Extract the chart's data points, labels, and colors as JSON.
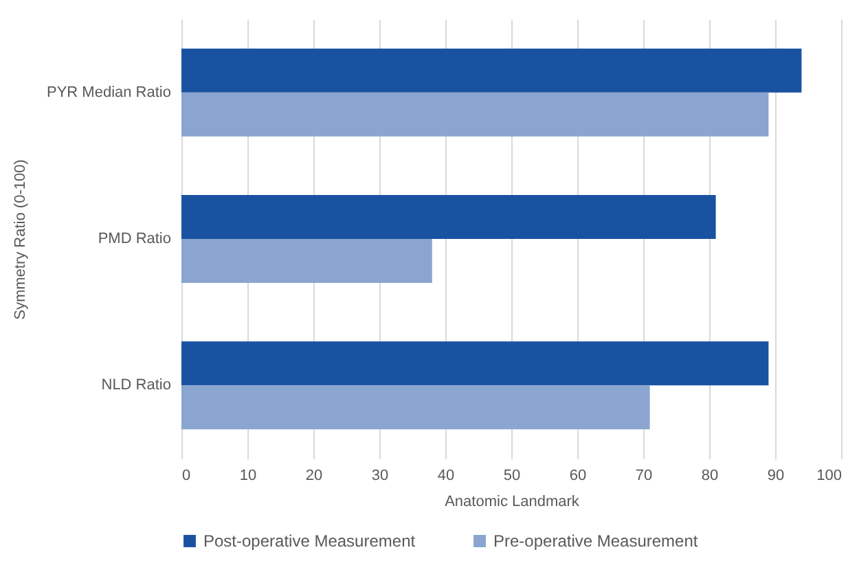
{
  "chart_data": {
    "type": "bar",
    "orientation": "horizontal",
    "xlabel": "Anatomic Landmark",
    "ylabel": "Symmetry Ratio (0-100)",
    "categories": [
      "PYR Median Ratio",
      "PMD Ratio",
      "NLD Ratio"
    ],
    "series": [
      {
        "name": "Post-operative Measurement",
        "color": "#1a52a2",
        "values": [
          94,
          81,
          89
        ]
      },
      {
        "name": "Pre-operative Measurement",
        "color": "#8aa5cf",
        "values": [
          89,
          38,
          71
        ]
      }
    ],
    "xlim": [
      0,
      100
    ],
    "xticks": [
      0,
      10,
      20,
      30,
      40,
      50,
      60,
      70,
      80,
      90,
      100
    ],
    "grid": "x",
    "legend": "bottom"
  }
}
